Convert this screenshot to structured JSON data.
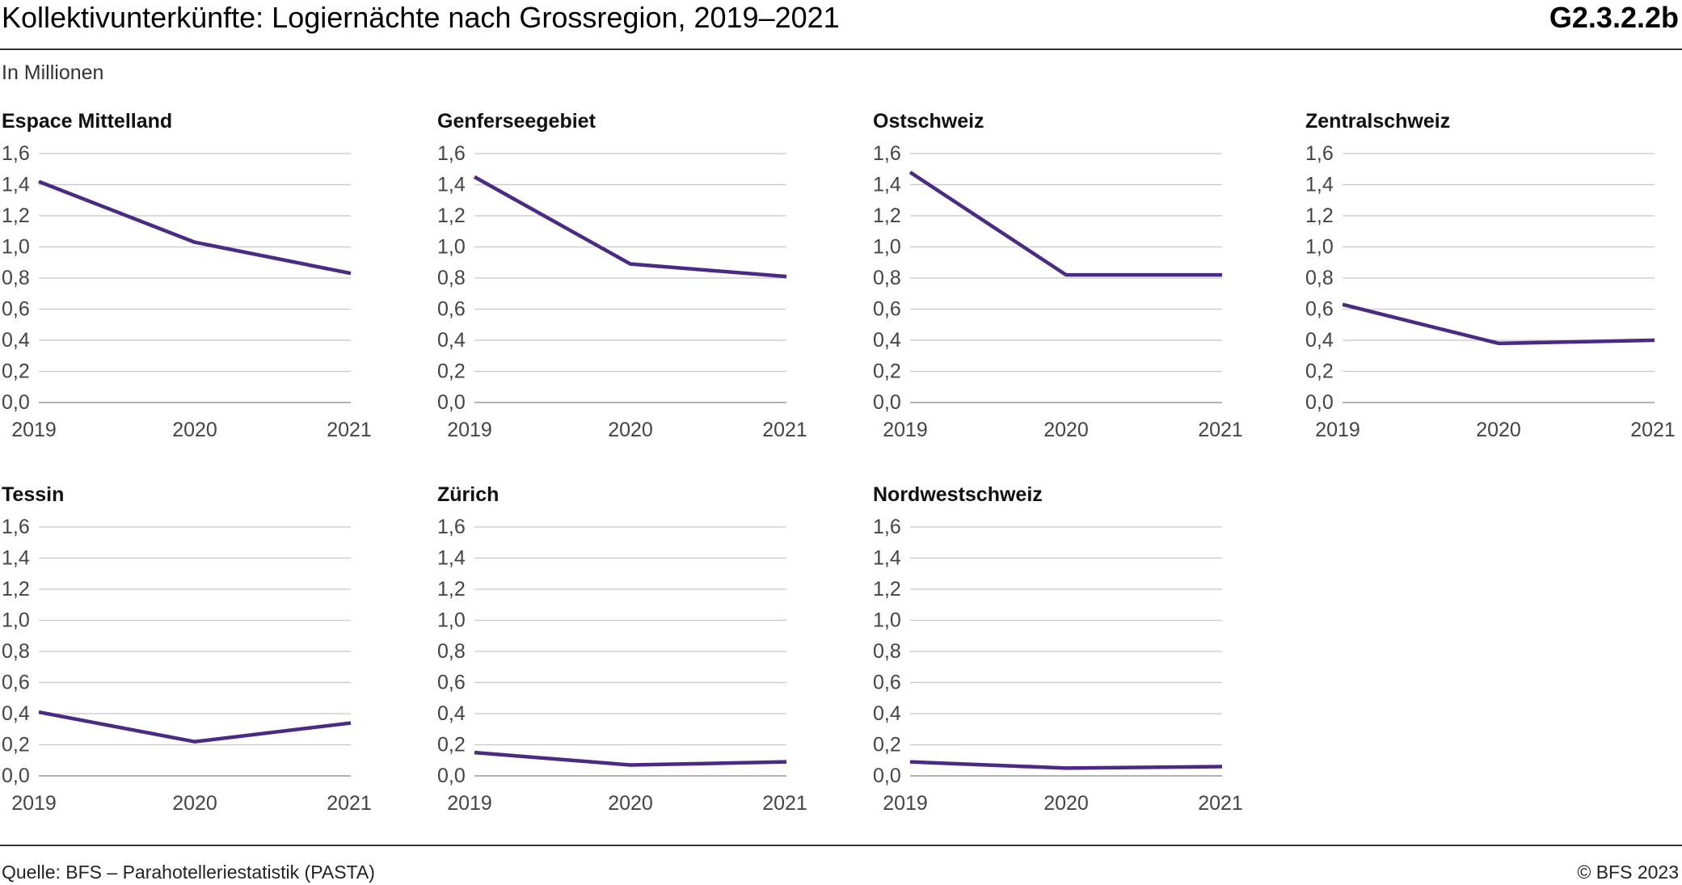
{
  "header": {
    "title": "Kollektivunterkünfte: Logiernächte nach Grossregion, 2019–2021",
    "code": "G2.3.2.2b",
    "subtitle": "In Millionen"
  },
  "footer": {
    "source": "Quelle: BFS – Parahotelleriestatistik (PASTA)",
    "copyright": "© BFS 2023"
  },
  "colors": {
    "line": "#4b2a85",
    "grid": "#c8c8c8",
    "text": "#444444"
  },
  "chart_data": [
    {
      "type": "line",
      "title": "Espace Mittelland",
      "x": [
        "2019",
        "2020",
        "2021"
      ],
      "values": [
        1.42,
        1.03,
        0.83
      ],
      "yticks": [
        "0,0",
        "0,2",
        "0,4",
        "0,6",
        "0,8",
        "1,0",
        "1,2",
        "1,4",
        "1,6"
      ],
      "ylim": [
        0,
        1.6
      ],
      "grid": true
    },
    {
      "type": "line",
      "title": "Genferseegebiet",
      "x": [
        "2019",
        "2020",
        "2021"
      ],
      "values": [
        1.45,
        0.89,
        0.81
      ],
      "yticks": [
        "0,0",
        "0,2",
        "0,4",
        "0,6",
        "0,8",
        "1,0",
        "1,2",
        "1,4",
        "1,6"
      ],
      "ylim": [
        0,
        1.6
      ],
      "grid": true
    },
    {
      "type": "line",
      "title": "Ostschweiz",
      "x": [
        "2019",
        "2020",
        "2021"
      ],
      "values": [
        1.48,
        0.82,
        0.82
      ],
      "yticks": [
        "0,0",
        "0,2",
        "0,4",
        "0,6",
        "0,8",
        "1,0",
        "1,2",
        "1,4",
        "1,6"
      ],
      "ylim": [
        0,
        1.6
      ],
      "grid": true
    },
    {
      "type": "line",
      "title": "Zentralschweiz",
      "x": [
        "2019",
        "2020",
        "2021"
      ],
      "values": [
        0.63,
        0.38,
        0.4
      ],
      "yticks": [
        "0,0",
        "0,2",
        "0,4",
        "0,6",
        "0,8",
        "1,0",
        "1,2",
        "1,4",
        "1,6"
      ],
      "ylim": [
        0,
        1.6
      ],
      "grid": true
    },
    {
      "type": "line",
      "title": "Tessin",
      "x": [
        "2019",
        "2020",
        "2021"
      ],
      "values": [
        0.41,
        0.22,
        0.34
      ],
      "yticks": [
        "0,0",
        "0,2",
        "0,4",
        "0,6",
        "0,8",
        "1,0",
        "1,2",
        "1,4",
        "1,6"
      ],
      "ylim": [
        0,
        1.6
      ],
      "grid": true
    },
    {
      "type": "line",
      "title": "Zürich",
      "x": [
        "2019",
        "2020",
        "2021"
      ],
      "values": [
        0.15,
        0.07,
        0.09
      ],
      "yticks": [
        "0,0",
        "0,2",
        "0,4",
        "0,6",
        "0,8",
        "1,0",
        "1,2",
        "1,4",
        "1,6"
      ],
      "ylim": [
        0,
        1.6
      ],
      "grid": true
    },
    {
      "type": "line",
      "title": "Nordwestschweiz",
      "x": [
        "2019",
        "2020",
        "2021"
      ],
      "values": [
        0.09,
        0.05,
        0.06
      ],
      "yticks": [
        "0,0",
        "0,2",
        "0,4",
        "0,6",
        "0,8",
        "1,0",
        "1,2",
        "1,4",
        "1,6"
      ],
      "ylim": [
        0,
        1.6
      ],
      "grid": true
    }
  ]
}
